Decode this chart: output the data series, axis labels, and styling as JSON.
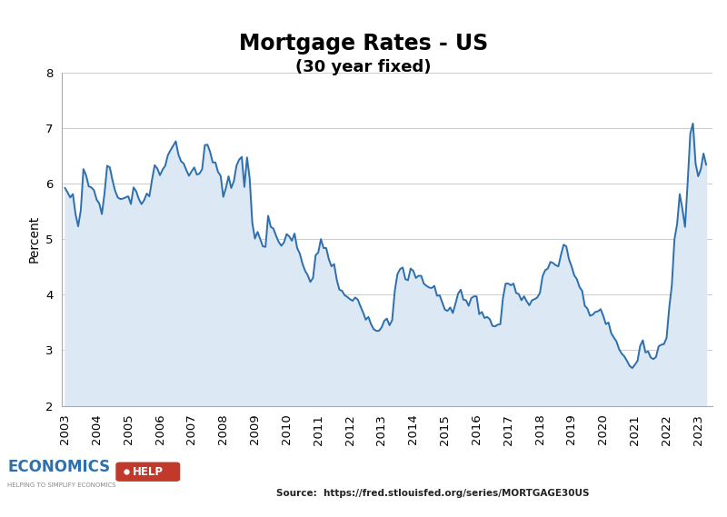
{
  "title": "Mortgage Rates - US",
  "subtitle": "(30 year fixed)",
  "ylabel": "Percent",
  "source": "Source:  https://fred.stlouisfed.org/series/MORTGAGE30US",
  "ylim": [
    2,
    8
  ],
  "yticks": [
    2,
    3,
    4,
    5,
    6,
    7,
    8
  ],
  "xlim_left": 2002.9,
  "xlim_right": 2023.45,
  "line_color": "#2e6fad",
  "fill_color": "#dce9f5",
  "background_color": "#ffffff",
  "grid_color": "#cccccc",
  "title_fontsize": 17,
  "subtitle_fontsize": 13,
  "axis_label_fontsize": 10,
  "tick_fontsize": 9.5,
  "data": {
    "2003_01": 5.92,
    "2003_02": 5.84,
    "2003_03": 5.75,
    "2003_04": 5.81,
    "2003_05": 5.45,
    "2003_06": 5.23,
    "2003_07": 5.52,
    "2003_08": 6.26,
    "2003_09": 6.15,
    "2003_10": 5.95,
    "2003_11": 5.93,
    "2003_12": 5.88,
    "2004_01": 5.71,
    "2004_02": 5.64,
    "2004_03": 5.45,
    "2004_04": 5.83,
    "2004_05": 6.32,
    "2004_06": 6.29,
    "2004_07": 6.06,
    "2004_08": 5.87,
    "2004_09": 5.75,
    "2004_10": 5.72,
    "2004_11": 5.73,
    "2004_12": 5.75,
    "2005_01": 5.77,
    "2005_02": 5.63,
    "2005_03": 5.93,
    "2005_04": 5.86,
    "2005_05": 5.72,
    "2005_06": 5.63,
    "2005_07": 5.7,
    "2005_08": 5.82,
    "2005_09": 5.77,
    "2005_10": 6.07,
    "2005_11": 6.33,
    "2005_12": 6.27,
    "2006_01": 6.15,
    "2006_02": 6.25,
    "2006_03": 6.32,
    "2006_04": 6.51,
    "2006_05": 6.6,
    "2006_06": 6.68,
    "2006_07": 6.76,
    "2006_08": 6.52,
    "2006_09": 6.4,
    "2006_10": 6.36,
    "2006_11": 6.24,
    "2006_12": 6.14,
    "2007_01": 6.22,
    "2007_02": 6.29,
    "2007_03": 6.16,
    "2007_04": 6.18,
    "2007_05": 6.26,
    "2007_06": 6.69,
    "2007_07": 6.7,
    "2007_08": 6.57,
    "2007_09": 6.38,
    "2007_10": 6.38,
    "2007_11": 6.21,
    "2007_12": 6.14,
    "2008_01": 5.76,
    "2008_02": 5.92,
    "2008_03": 6.13,
    "2008_04": 5.92,
    "2008_05": 6.04,
    "2008_06": 6.32,
    "2008_07": 6.43,
    "2008_08": 6.48,
    "2008_09": 5.94,
    "2008_10": 6.47,
    "2008_11": 6.09,
    "2008_12": 5.29,
    "2009_01": 5.01,
    "2009_02": 5.13,
    "2009_03": 5.0,
    "2009_04": 4.87,
    "2009_05": 4.86,
    "2009_06": 5.42,
    "2009_07": 5.22,
    "2009_08": 5.19,
    "2009_09": 5.06,
    "2009_10": 4.95,
    "2009_11": 4.88,
    "2009_12": 4.94,
    "2010_01": 5.09,
    "2010_02": 5.05,
    "2010_03": 4.97,
    "2010_04": 5.1,
    "2010_05": 4.84,
    "2010_06": 4.74,
    "2010_07": 4.56,
    "2010_08": 4.43,
    "2010_09": 4.35,
    "2010_10": 4.23,
    "2010_11": 4.3,
    "2010_12": 4.71,
    "2011_01": 4.76,
    "2011_02": 5.0,
    "2011_03": 4.84,
    "2011_04": 4.84,
    "2011_05": 4.64,
    "2011_06": 4.51,
    "2011_07": 4.55,
    "2011_08": 4.27,
    "2011_09": 4.09,
    "2011_10": 4.07,
    "2011_11": 3.99,
    "2011_12": 3.96,
    "2012_01": 3.92,
    "2012_02": 3.89,
    "2012_03": 3.95,
    "2012_04": 3.91,
    "2012_05": 3.79,
    "2012_06": 3.68,
    "2012_07": 3.55,
    "2012_08": 3.6,
    "2012_09": 3.47,
    "2012_10": 3.38,
    "2012_11": 3.35,
    "2012_12": 3.35,
    "2013_01": 3.41,
    "2013_02": 3.53,
    "2013_03": 3.57,
    "2013_04": 3.45,
    "2013_05": 3.54,
    "2013_06": 4.07,
    "2013_07": 4.37,
    "2013_08": 4.46,
    "2013_09": 4.49,
    "2013_10": 4.28,
    "2013_11": 4.26,
    "2013_12": 4.47,
    "2014_01": 4.43,
    "2014_02": 4.3,
    "2014_03": 4.34,
    "2014_04": 4.34,
    "2014_05": 4.2,
    "2014_06": 4.16,
    "2014_07": 4.13,
    "2014_08": 4.12,
    "2014_09": 4.16,
    "2014_10": 3.98,
    "2014_11": 3.99,
    "2014_12": 3.86,
    "2015_01": 3.73,
    "2015_02": 3.71,
    "2015_03": 3.77,
    "2015_04": 3.67,
    "2015_05": 3.84,
    "2015_06": 4.02,
    "2015_07": 4.09,
    "2015_08": 3.91,
    "2015_09": 3.9,
    "2015_10": 3.8,
    "2015_11": 3.94,
    "2015_12": 3.97,
    "2016_01": 3.97,
    "2016_02": 3.65,
    "2016_03": 3.69,
    "2016_04": 3.58,
    "2016_05": 3.6,
    "2016_06": 3.56,
    "2016_07": 3.44,
    "2016_08": 3.43,
    "2016_09": 3.46,
    "2016_10": 3.47,
    "2016_11": 3.94,
    "2016_12": 4.2,
    "2017_01": 4.2,
    "2017_02": 4.17,
    "2017_03": 4.2,
    "2017_04": 4.03,
    "2017_05": 4.01,
    "2017_06": 3.9,
    "2017_07": 3.97,
    "2017_08": 3.88,
    "2017_09": 3.81,
    "2017_10": 3.9,
    "2017_11": 3.92,
    "2017_12": 3.95,
    "2018_01": 4.03,
    "2018_02": 4.33,
    "2018_03": 4.44,
    "2018_04": 4.47,
    "2018_05": 4.59,
    "2018_06": 4.57,
    "2018_07": 4.53,
    "2018_08": 4.51,
    "2018_09": 4.72,
    "2018_10": 4.9,
    "2018_11": 4.87,
    "2018_12": 4.64,
    "2019_01": 4.51,
    "2019_02": 4.35,
    "2019_03": 4.28,
    "2019_04": 4.14,
    "2019_05": 4.07,
    "2019_06": 3.8,
    "2019_07": 3.75,
    "2019_08": 3.62,
    "2019_09": 3.64,
    "2019_10": 3.69,
    "2019_11": 3.7,
    "2019_12": 3.74,
    "2020_01": 3.62,
    "2020_02": 3.47,
    "2020_03": 3.5,
    "2020_04": 3.31,
    "2020_05": 3.23,
    "2020_06": 3.16,
    "2020_07": 3.02,
    "2020_08": 2.94,
    "2020_09": 2.89,
    "2020_10": 2.81,
    "2020_11": 2.72,
    "2020_12": 2.68,
    "2021_01": 2.74,
    "2021_02": 2.81,
    "2021_03": 3.08,
    "2021_04": 3.18,
    "2021_05": 2.96,
    "2021_06": 2.98,
    "2021_07": 2.87,
    "2021_08": 2.84,
    "2021_09": 2.88,
    "2021_10": 3.07,
    "2021_11": 3.1,
    "2021_12": 3.11,
    "2022_01": 3.22,
    "2022_02": 3.76,
    "2022_03": 4.17,
    "2022_04": 5.0,
    "2022_05": 5.27,
    "2022_06": 5.81,
    "2022_07": 5.54,
    "2022_08": 5.22,
    "2022_09": 6.02,
    "2022_10": 6.9,
    "2022_11": 7.08,
    "2022_12": 6.36,
    "2023_01": 6.13,
    "2023_02": 6.26,
    "2023_03": 6.54,
    "2023_04": 6.34
  }
}
